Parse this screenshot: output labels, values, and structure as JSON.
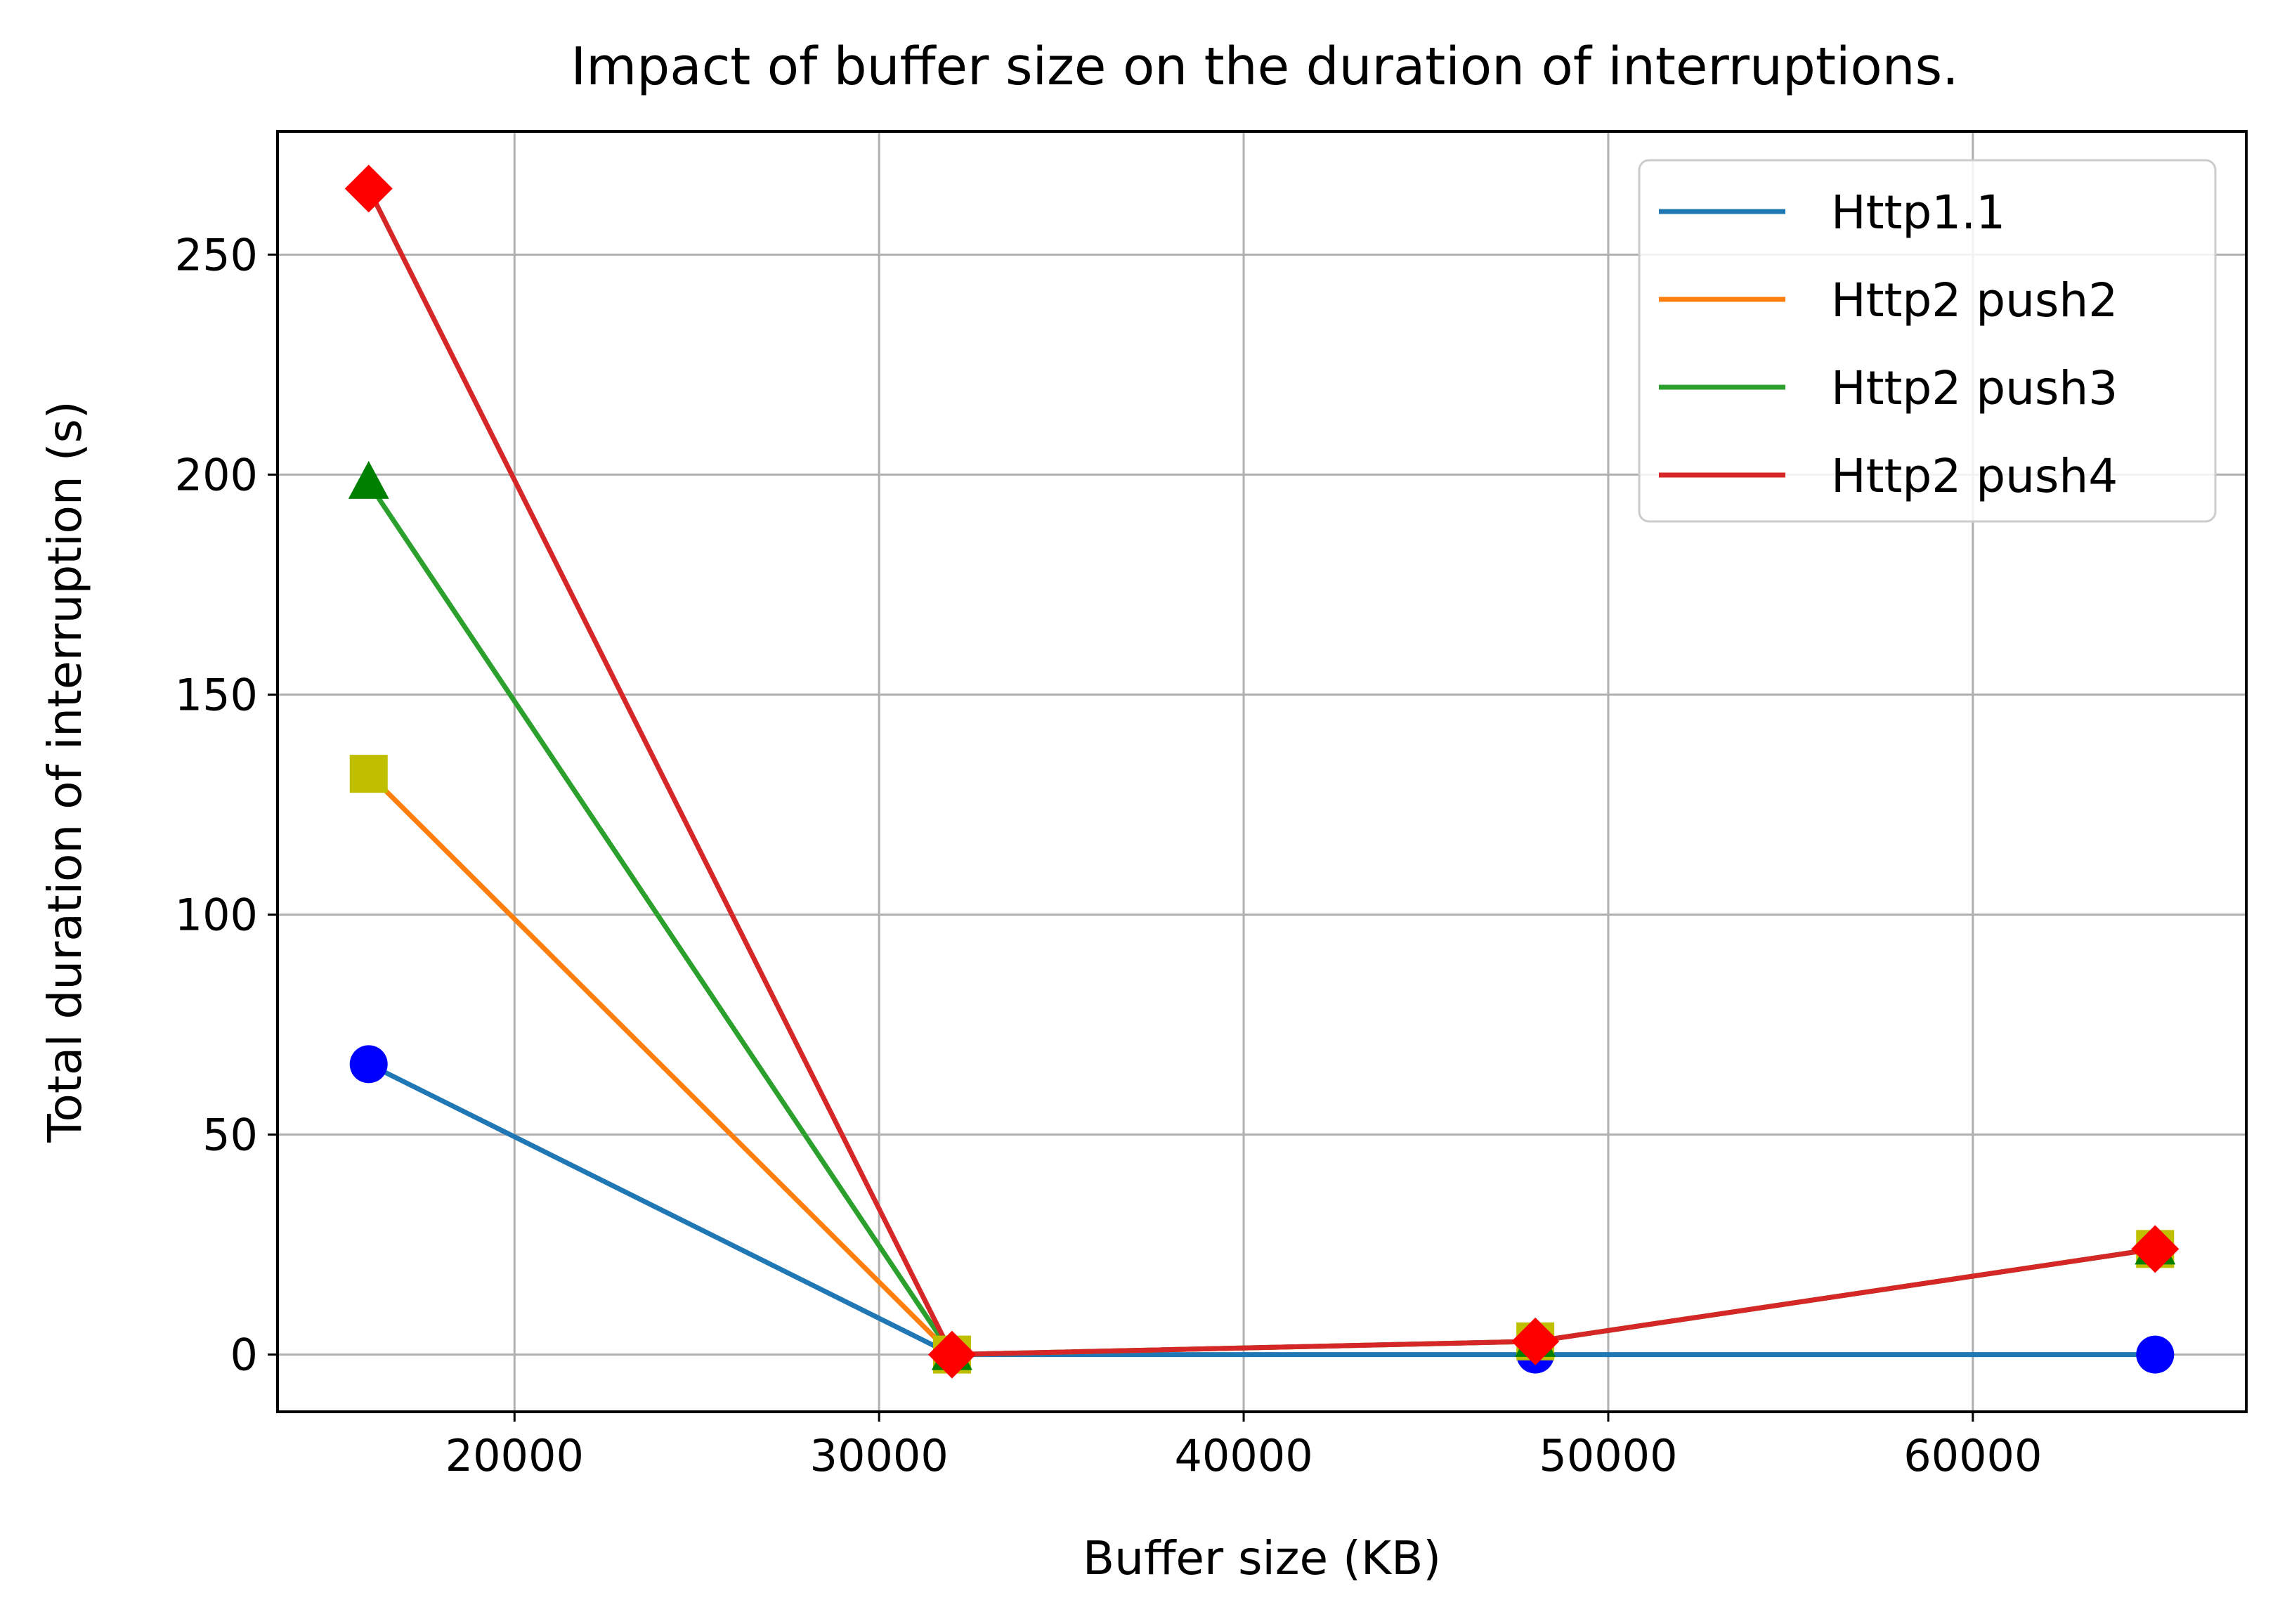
{
  "chart_data": {
    "type": "line",
    "title": "Impact of buffer size on the duration of interruptions.",
    "xlabel": "Buffer size (KB)",
    "ylabel": "Total duration of interruption (s)",
    "xlim": [
      13500,
      67500
    ],
    "ylim": [
      -13,
      278
    ],
    "xticks": [
      20000,
      30000,
      40000,
      50000,
      60000
    ],
    "yticks": [
      0,
      50,
      100,
      150,
      200,
      250
    ],
    "grid": true,
    "legend_position": "top-right",
    "x": [
      16000,
      32000,
      48000,
      65000
    ],
    "series": [
      {
        "name": "Http1.1",
        "values": [
          66,
          0,
          0,
          0
        ],
        "line_color": "#1f77b4",
        "marker": "circle",
        "marker_color": "#0000ff"
      },
      {
        "name": "Http2 push2",
        "values": [
          132,
          0,
          3,
          24
        ],
        "line_color": "#ff7f0e",
        "marker": "square",
        "marker_color": "#bfbf00"
      },
      {
        "name": "Http2 push3",
        "values": [
          198,
          0,
          3,
          24
        ],
        "line_color": "#2ca02c",
        "marker": "triangle",
        "marker_color": "#008000"
      },
      {
        "name": "Http2 push4",
        "values": [
          265,
          0,
          3,
          24
        ],
        "line_color": "#d62728",
        "marker": "diamond",
        "marker_color": "#ff0000"
      }
    ]
  }
}
